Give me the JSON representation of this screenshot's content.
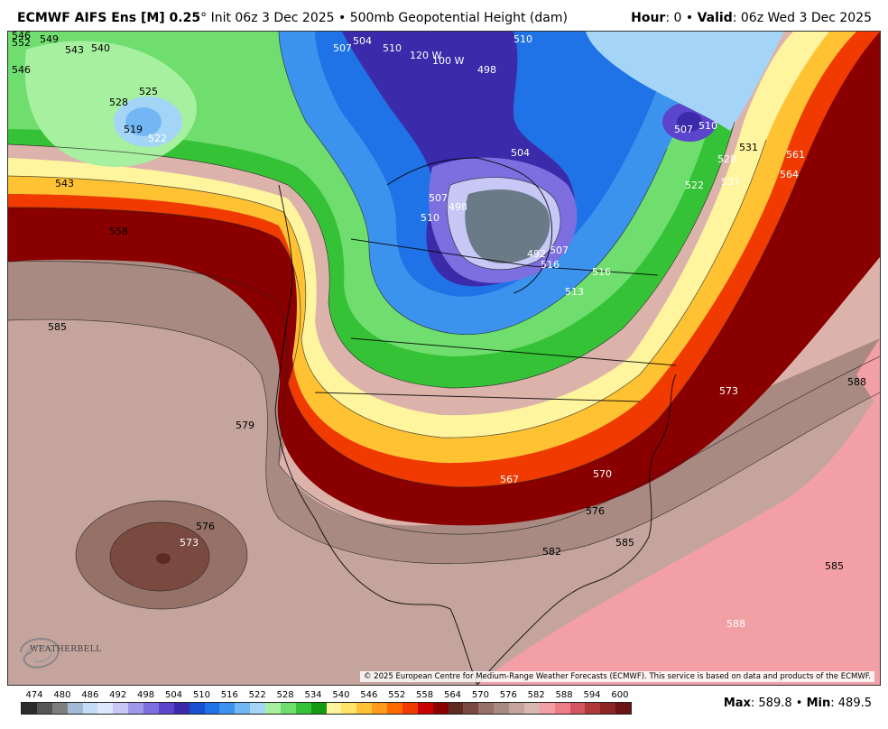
{
  "header": {
    "model": "ECMWF AIFS Ens [M] 0.25",
    "degree_mark": "°",
    "init": "Init 06z 3 Dec 2025",
    "bullet": "•",
    "field": "500mb Geopotential Height (dam)",
    "hour_label": "Hour",
    "hour_value": ": 0",
    "valid_label": "Valid",
    "valid_value": ": 06z Wed 3 Dec 2025"
  },
  "credit": "© 2025 European Centre for Medium-Range Weather Forecasts (ECMWF). This service is based on data and products of the ECMWF.",
  "logo": {
    "text": "WEATHERBELL"
  },
  "colorbar": {
    "labels": [
      "474",
      "480",
      "486",
      "492",
      "498",
      "504",
      "510",
      "516",
      "522",
      "528",
      "534",
      "540",
      "546",
      "552",
      "558",
      "564",
      "570",
      "576",
      "582",
      "588",
      "594",
      "600"
    ],
    "colors": [
      "#2b2b2b",
      "#555555",
      "#7f7f7f",
      "#a3b9d8",
      "#c6dcf4",
      "#dfe8fb",
      "#c7c8f5",
      "#9e99ea",
      "#7d6fe0",
      "#5b45cc",
      "#3b2aa9",
      "#1a4fd1",
      "#1f73e6",
      "#3c93ee",
      "#72b7f3",
      "#a4d5f7",
      "#a7f0a0",
      "#6fde6f",
      "#36c236",
      "#149a14",
      "#fff59e",
      "#ffe36b",
      "#ffc233",
      "#ff9a1a",
      "#ff6a00",
      "#f03a00",
      "#c80000",
      "#8a0000",
      "#5e2a22",
      "#7a4a40",
      "#957167",
      "#a88a82",
      "#c4a49d",
      "#d9b8b1",
      "#f2a0a6",
      "#ee7d88",
      "#d45560",
      "#b03a3a",
      "#8c2424",
      "#6b1414"
    ]
  },
  "minmax": {
    "max_label": "Max",
    "max_value": ": 589.8",
    "sep": "•",
    "min_label": "Min",
    "min_value": ": 489.5"
  },
  "map": {
    "contour_labels": [
      "552",
      "549",
      "543",
      "540",
      "546",
      "546",
      "507",
      "504",
      "510",
      "120 W",
      "100 W",
      "498",
      "510",
      "528",
      "525",
      "519",
      "522",
      "543",
      "558",
      "507",
      "510",
      "504",
      "498",
      "507",
      "510",
      "516",
      "522",
      "528",
      "537",
      "531",
      "561",
      "564",
      "492",
      "513",
      "516",
      "507",
      "585",
      "579",
      "573",
      "576",
      "567",
      "570",
      "576",
      "582",
      "585",
      "588",
      "573",
      "588",
      "585"
    ]
  }
}
